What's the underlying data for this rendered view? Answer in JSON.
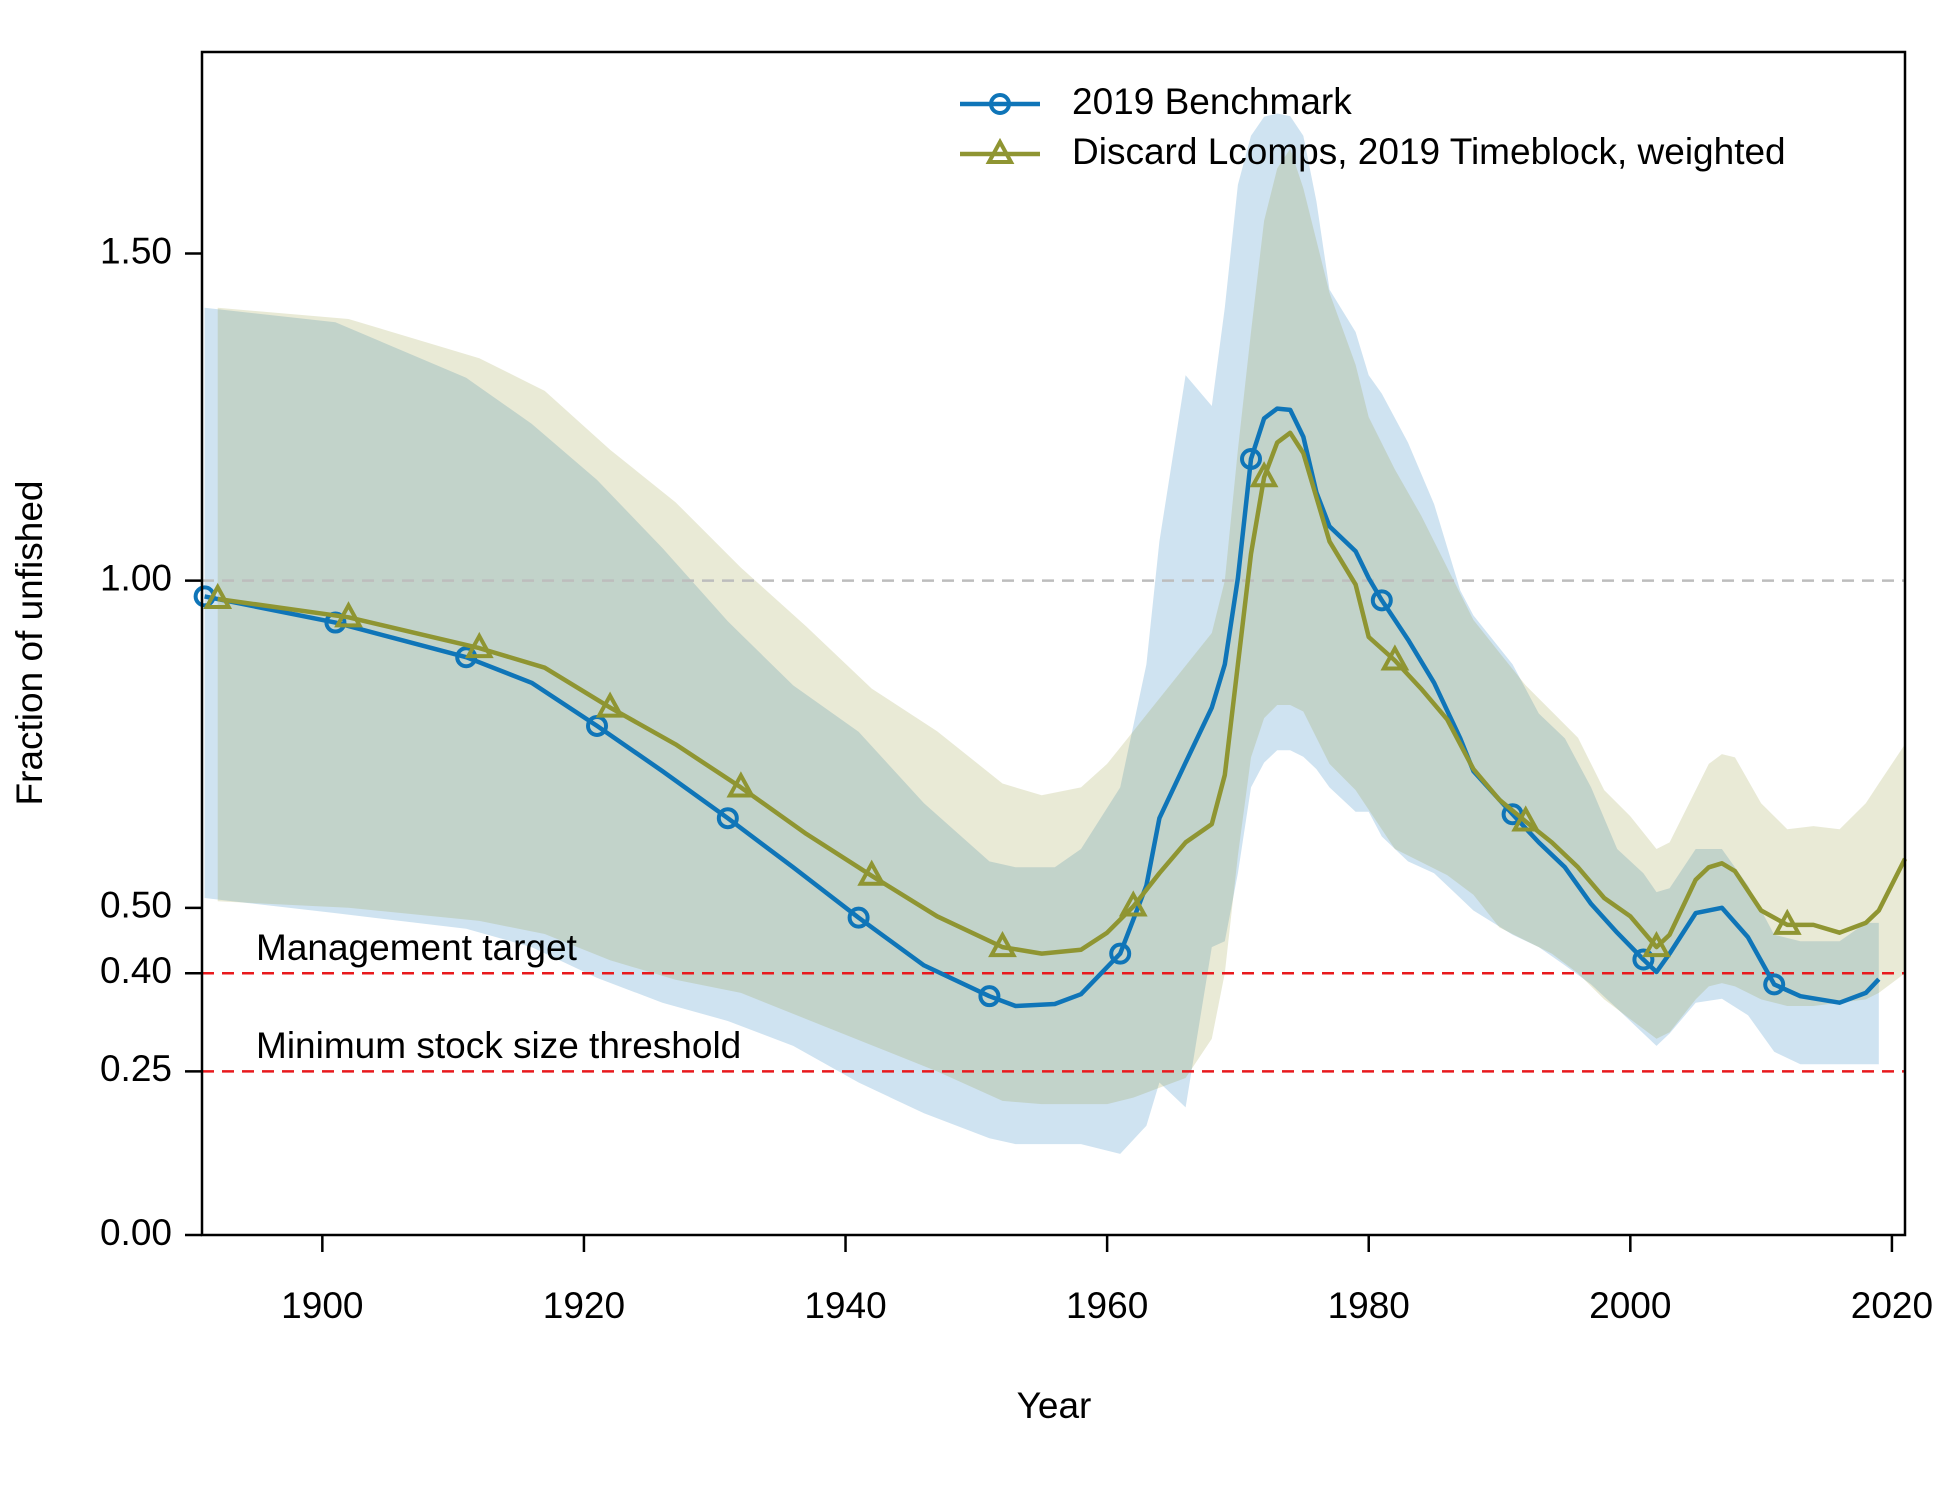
{
  "chart_data": {
    "type": "line",
    "x_label": "Year",
    "y_label": "Fraction of unfished",
    "xlim": [
      1890.8,
      2021
    ],
    "ylim": [
      0,
      1.808
    ],
    "xticks": [
      1900,
      1920,
      1940,
      1960,
      1980,
      2000,
      2020
    ],
    "yticks": [
      {
        "value": 0,
        "label": "0.00"
      },
      {
        "value": 0.25,
        "label": "0.25"
      },
      {
        "value": 0.4,
        "label": "0.40"
      },
      {
        "value": 0.5,
        "label": "0.50"
      },
      {
        "value": 1,
        "label": "1.00"
      },
      {
        "value": 1.5,
        "label": "1.50"
      }
    ],
    "reference_lines": [
      {
        "value": 1,
        "color": "#bdbdbd"
      },
      {
        "value": 0.4,
        "label": "Management target",
        "color": "#e8191d"
      },
      {
        "value": 0.25,
        "label": "Minimum stock size threshold",
        "color": "#e8191d"
      }
    ],
    "legend": "top-right",
    "series": [
      {
        "name": "2019 Benchmark",
        "color": "#0f75b8",
        "marker": "circle",
        "x": [
          1891,
          1901,
          1911,
          1916,
          1921,
          1926,
          1931,
          1936,
          1941,
          1946,
          1951,
          1953,
          1956,
          1958,
          1961,
          1963,
          1964,
          1966,
          1968,
          1969,
          1970,
          1971,
          1972,
          1973,
          1974,
          1975,
          1976,
          1977,
          1979,
          1980,
          1981,
          1983,
          1985,
          1987,
          1988,
          1991,
          1993,
          1995,
          1997,
          1999,
          2001,
          2002,
          2003,
          2005,
          2007,
          2009,
          2011,
          2013,
          2016,
          2018,
          2019
        ],
        "values": [
          0.976,
          0.936,
          0.883,
          0.844,
          0.778,
          0.709,
          0.637,
          0.562,
          0.485,
          0.412,
          0.365,
          0.35,
          0.353,
          0.368,
          0.43,
          0.534,
          0.637,
          0.722,
          0.806,
          0.872,
          1.004,
          1.186,
          1.248,
          1.263,
          1.261,
          1.22,
          1.135,
          1.083,
          1.045,
          1.004,
          0.97,
          0.91,
          0.844,
          0.759,
          0.709,
          0.643,
          0.6,
          0.562,
          0.506,
          0.462,
          0.421,
          0.402,
          0.43,
          0.492,
          0.5,
          0.455,
          0.383,
          0.365,
          0.355,
          0.37,
          0.391
        ],
        "upper": [
          1.417,
          1.395,
          1.31,
          1.24,
          1.154,
          1.05,
          0.938,
          0.84,
          0.769,
          0.66,
          0.571,
          0.562,
          0.562,
          0.59,
          0.684,
          0.872,
          1.06,
          1.314,
          1.267,
          1.417,
          1.605,
          1.68,
          1.709,
          1.714,
          1.71,
          1.68,
          1.58,
          1.445,
          1.38,
          1.314,
          1.286,
          1.211,
          1.117,
          0.985,
          0.947,
          0.872,
          0.797,
          0.759,
          0.684,
          0.59,
          0.553,
          0.524,
          0.53,
          0.59,
          0.59,
          0.534,
          0.459,
          0.449,
          0.449,
          0.477,
          0.477
        ],
        "lower": [
          0.515,
          0.492,
          0.468,
          0.44,
          0.393,
          0.355,
          0.327,
          0.289,
          0.233,
          0.186,
          0.148,
          0.139,
          0.139,
          0.139,
          0.124,
          0.167,
          0.233,
          0.195,
          0.44,
          0.449,
          0.553,
          0.684,
          0.722,
          0.741,
          0.741,
          0.731,
          0.712,
          0.684,
          0.647,
          0.647,
          0.609,
          0.571,
          0.553,
          0.515,
          0.496,
          0.459,
          0.44,
          0.412,
          0.383,
          0.346,
          0.308,
          0.289,
          0.308,
          0.355,
          0.361,
          0.336,
          0.28,
          0.261,
          0.261,
          0.261,
          0.261
        ]
      },
      {
        "name": "Discard Lcomps, 2019 Timeblock, weighted",
        "color": "#8f9532",
        "marker": "triangle",
        "x": [
          1892,
          1902,
          1912,
          1917,
          1922,
          1927,
          1932,
          1937,
          1942,
          1947,
          1952,
          1955,
          1958,
          1960,
          1962,
          1964,
          1966,
          1968,
          1969,
          1970,
          1971,
          1972,
          1973,
          1974,
          1975,
          1977,
          1979,
          1980,
          1982,
          1984,
          1986,
          1988,
          1990,
          1992,
          1994,
          1996,
          1998,
          2000,
          2002,
          2003,
          2005,
          2006,
          2007,
          2008,
          2010,
          2012,
          2014,
          2016,
          2018,
          2019,
          2021
        ],
        "values": [
          0.972,
          0.944,
          0.897,
          0.867,
          0.806,
          0.75,
          0.684,
          0.613,
          0.549,
          0.487,
          0.44,
          0.43,
          0.436,
          0.462,
          0.502,
          0.553,
          0.6,
          0.628,
          0.703,
          0.872,
          1.041,
          1.158,
          1.211,
          1.226,
          1.195,
          1.06,
          0.994,
          0.914,
          0.878,
          0.835,
          0.788,
          0.712,
          0.665,
          0.632,
          0.6,
          0.562,
          0.515,
          0.487,
          0.44,
          0.459,
          0.543,
          0.562,
          0.568,
          0.556,
          0.496,
          0.474,
          0.474,
          0.462,
          0.477,
          0.496,
          0.575
        ],
        "upper": [
          1.417,
          1.4,
          1.34,
          1.29,
          1.2,
          1.12,
          1.02,
          0.93,
          0.835,
          0.77,
          0.69,
          0.672,
          0.684,
          0.72,
          0.77,
          0.82,
          0.87,
          0.92,
          1.0,
          1.2,
          1.38,
          1.55,
          1.63,
          1.66,
          1.6,
          1.44,
          1.33,
          1.25,
          1.17,
          1.1,
          1.02,
          0.94,
          0.89,
          0.84,
          0.8,
          0.76,
          0.68,
          0.64,
          0.59,
          0.6,
          0.68,
          0.72,
          0.735,
          0.73,
          0.66,
          0.62,
          0.625,
          0.62,
          0.66,
          0.69,
          0.75
        ],
        "lower": [
          0.51,
          0.5,
          0.48,
          0.46,
          0.42,
          0.39,
          0.37,
          0.33,
          0.29,
          0.25,
          0.205,
          0.2,
          0.2,
          0.2,
          0.21,
          0.225,
          0.24,
          0.3,
          0.4,
          0.58,
          0.73,
          0.79,
          0.81,
          0.81,
          0.8,
          0.72,
          0.68,
          0.65,
          0.59,
          0.57,
          0.55,
          0.52,
          0.47,
          0.45,
          0.43,
          0.4,
          0.36,
          0.33,
          0.3,
          0.31,
          0.36,
          0.38,
          0.385,
          0.38,
          0.36,
          0.35,
          0.35,
          0.355,
          0.36,
          0.37,
          0.4
        ]
      }
    ]
  }
}
